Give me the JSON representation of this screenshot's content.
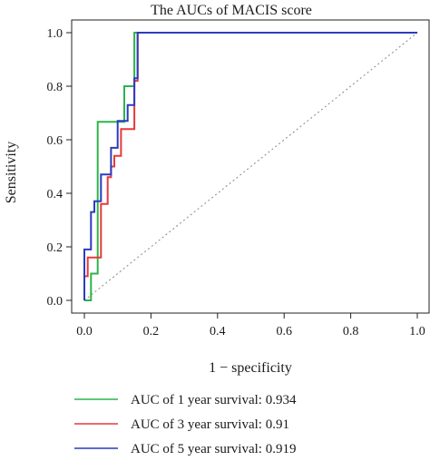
{
  "chart_data": {
    "type": "line",
    "title": "The AUCs of MACIS score",
    "xlabel": "1 − specificity",
    "ylabel": "Sensitivity",
    "xlim": [
      0.0,
      1.0
    ],
    "ylim": [
      0.0,
      1.0
    ],
    "x_ticks": [
      "0.0",
      "0.2",
      "0.4",
      "0.6",
      "0.8",
      "1.0"
    ],
    "y_ticks": [
      "0.0",
      "0.2",
      "0.4",
      "0.6",
      "0.8",
      "1.0"
    ],
    "grid": false,
    "legend_position": "bottom",
    "reference_line": {
      "x": [
        0,
        1
      ],
      "y": [
        0,
        1
      ],
      "style": "dotted",
      "color": "#888888"
    },
    "series": [
      {
        "name": "AUC of 1 year survival: 0.934",
        "color": "#2db34a",
        "x": [
          0.0,
          0.02,
          0.02,
          0.04,
          0.04,
          0.12,
          0.12,
          0.15,
          0.15,
          1.0
        ],
        "y": [
          0.0,
          0.0,
          0.1,
          0.1,
          0.667,
          0.667,
          0.8,
          0.8,
          1.0,
          1.0
        ]
      },
      {
        "name": "AUC of 3 year survival: 0.91",
        "color": "#e8393a",
        "x": [
          0.0,
          0.0,
          0.01,
          0.01,
          0.02,
          0.02,
          0.05,
          0.05,
          0.07,
          0.07,
          0.08,
          0.08,
          0.09,
          0.09,
          0.11,
          0.11,
          0.15,
          0.15,
          0.16,
          0.16,
          1.0
        ],
        "y": [
          0.0,
          0.09,
          0.09,
          0.16,
          0.16,
          0.16,
          0.16,
          0.36,
          0.36,
          0.46,
          0.46,
          0.5,
          0.5,
          0.54,
          0.54,
          0.64,
          0.64,
          0.82,
          0.82,
          1.0,
          1.0
        ]
      },
      {
        "name": "AUC of 5 year survival: 0.919",
        "color": "#2a3cbf",
        "x": [
          0.0,
          0.0,
          0.01,
          0.01,
          0.02,
          0.02,
          0.03,
          0.03,
          0.05,
          0.05,
          0.06,
          0.06,
          0.08,
          0.08,
          0.1,
          0.1,
          0.13,
          0.13,
          0.15,
          0.15,
          0.16,
          0.16,
          1.0
        ],
        "y": [
          0.0,
          0.19,
          0.19,
          0.19,
          0.19,
          0.33,
          0.33,
          0.37,
          0.37,
          0.47,
          0.47,
          0.47,
          0.47,
          0.57,
          0.57,
          0.67,
          0.67,
          0.73,
          0.73,
          0.83,
          0.83,
          1.0,
          1.0
        ]
      }
    ]
  }
}
